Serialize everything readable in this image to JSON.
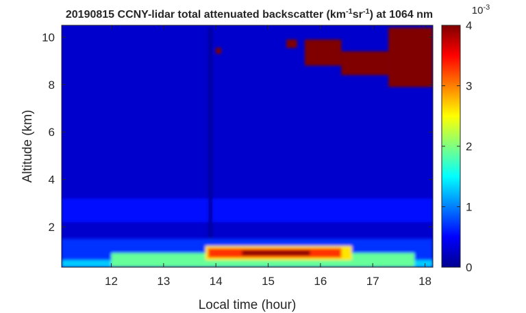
{
  "chart_data": {
    "type": "heatmap",
    "title_parts": {
      "date": "20190815",
      "main": "CCNY-lidar total attenuated backscatter (km",
      "exp1": "-1",
      "mid": "sr",
      "exp2": "-1",
      "tail": ") at 1064 nm"
    },
    "xlabel": "Local time (hour)",
    "ylabel": "Altitude (km)",
    "xlim": [
      11.05,
      18.15
    ],
    "ylim": [
      0.3,
      10.5
    ],
    "xticks": [
      12,
      13,
      14,
      15,
      16,
      17,
      18
    ],
    "yticks": [
      2,
      4,
      6,
      8,
      10
    ],
    "colorbar": {
      "range": [
        0,
        4
      ],
      "ticks": [
        0,
        1,
        2,
        3,
        4
      ],
      "multiplier": "10",
      "multiplier_exp": "-3",
      "colormap": "jet"
    },
    "background_value": 0.3,
    "features": [
      {
        "x0": 11.05,
        "x1": 18.15,
        "y0": 0.3,
        "y1": 0.6,
        "value": 1.3
      },
      {
        "x0": 11.05,
        "x1": 18.15,
        "y0": 0.6,
        "y1": 1.5,
        "value": 0.7
      },
      {
        "x0": 12.0,
        "x1": 17.8,
        "y0": 0.3,
        "y1": 0.9,
        "value": 1.9
      },
      {
        "x0": 13.8,
        "x1": 16.6,
        "y0": 0.6,
        "y1": 1.2,
        "value": 2.6
      },
      {
        "x0": 13.85,
        "x1": 16.4,
        "y0": 0.7,
        "y1": 1.1,
        "value": 3.3
      },
      {
        "x0": 14.5,
        "x1": 15.8,
        "y0": 0.8,
        "y1": 1.0,
        "value": 4.0
      },
      {
        "x0": 11.05,
        "x1": 18.15,
        "y0": 2.2,
        "y1": 3.2,
        "value": 0.55
      },
      {
        "x0": 13.86,
        "x1": 13.93,
        "y0": 1.5,
        "y1": 10.4,
        "value": 0.1
      },
      {
        "x0": 14.0,
        "x1": 14.1,
        "y0": 9.3,
        "y1": 9.55,
        "value": 4.0
      },
      {
        "x0": 15.35,
        "x1": 15.55,
        "y0": 9.55,
        "y1": 9.9,
        "value": 4.0
      },
      {
        "x0": 15.7,
        "x1": 16.4,
        "y0": 8.8,
        "y1": 9.9,
        "value": 4.0
      },
      {
        "x0": 16.4,
        "x1": 17.3,
        "y0": 8.4,
        "y1": 9.4,
        "value": 4.0
      },
      {
        "x0": 17.3,
        "x1": 18.15,
        "y0": 7.9,
        "y1": 10.4,
        "value": 4.0
      }
    ]
  }
}
